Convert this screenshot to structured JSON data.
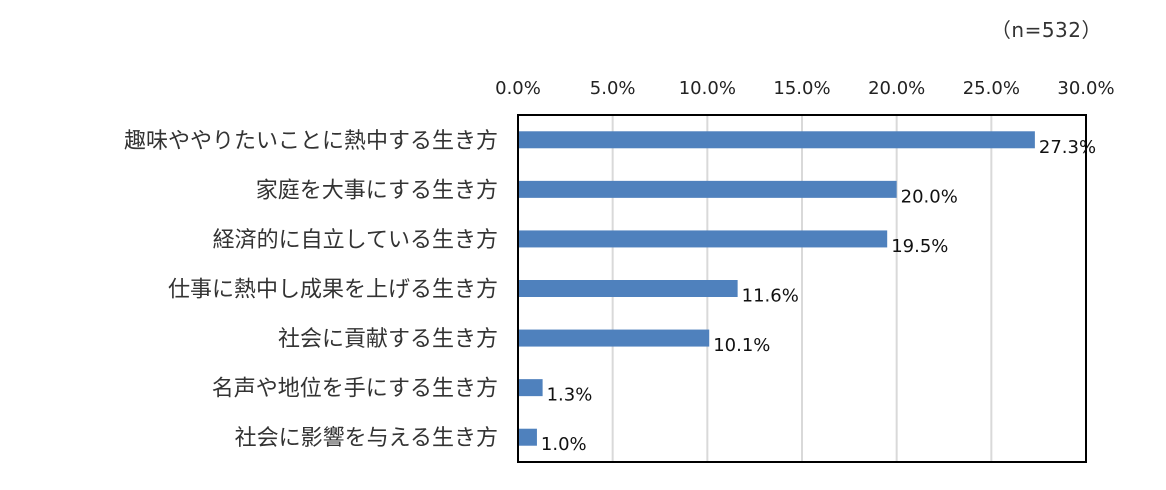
{
  "sample_note": "（n=532）",
  "chart_data": {
    "type": "bar",
    "orientation": "horizontal",
    "categories": [
      "趣味ややりたいことに熱中する生き方",
      "家庭を大事にする生き方",
      "経済的に自立している生き方",
      "仕事に熱中し成果を上げる生き方",
      "社会に貢献する生き方",
      "名声や地位を手にする生き方",
      "社会に影響を与える生き方"
    ],
    "values": [
      27.3,
      20.0,
      19.5,
      11.6,
      10.1,
      1.3,
      1.0
    ],
    "value_labels": [
      "27.3%",
      "20.0%",
      "19.5%",
      "11.6%",
      "10.1%",
      "1.3%",
      "1.0%"
    ],
    "xlim": [
      0,
      30
    ],
    "x_ticks": [
      0,
      5,
      10,
      15,
      20,
      25,
      30
    ],
    "x_tick_labels": [
      "0.0%",
      "5.0%",
      "10.0%",
      "15.0%",
      "20.0%",
      "25.0%",
      "30.0%"
    ],
    "x_axis_position": "top",
    "grid": true,
    "legend": "none",
    "bar_color": "#4F81BD",
    "grid_color": "#D9D9D9",
    "border_color": "#000000"
  }
}
